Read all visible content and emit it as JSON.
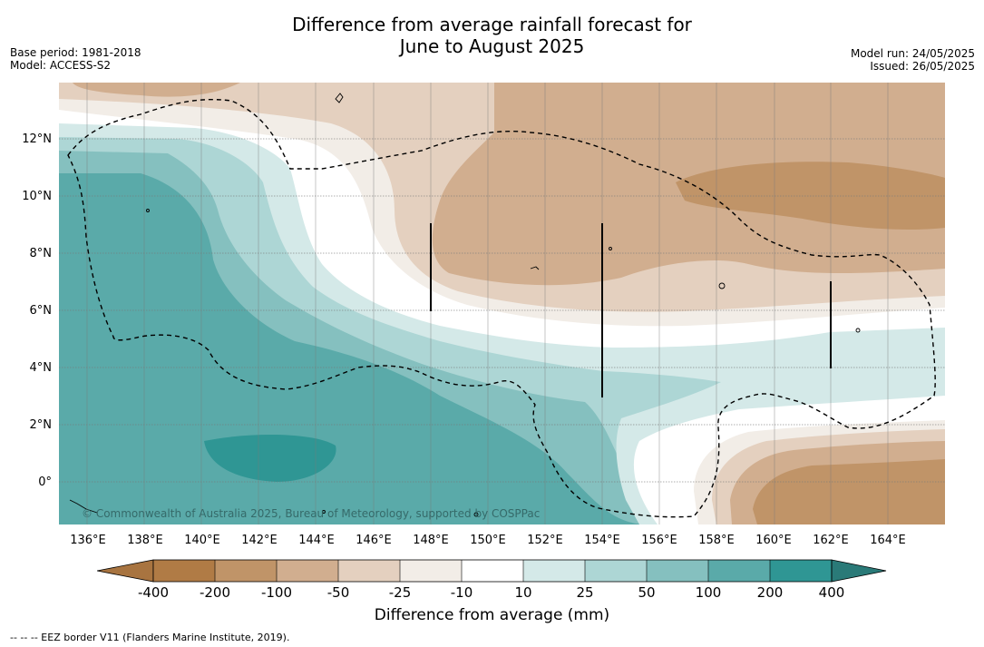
{
  "title": {
    "line1": "Difference from average rainfall forecast for",
    "line2": "June to August 2025"
  },
  "header_left": {
    "base_period": "Base period: 1981-2018",
    "model": "Model: ACCESS-S2"
  },
  "header_right": {
    "model_run": "Model run: 24/05/2025",
    "issued": "Issued: 26/05/2025"
  },
  "map": {
    "x_ticks": [
      "136°E",
      "138°E",
      "140°E",
      "142°E",
      "144°E",
      "146°E",
      "148°E",
      "150°E",
      "152°E",
      "154°E",
      "156°E",
      "158°E",
      "160°E",
      "162°E",
      "164°E"
    ],
    "y_ticks": [
      "12°N",
      "10°N",
      "8°N",
      "6°N",
      "4°N",
      "2°N",
      "0°"
    ],
    "copyright": "© Commonwealth of Australia 2025, Bureau of Meteorology, supported by COSPPac"
  },
  "colorbar": {
    "title": "Difference from average (mm)",
    "tick_labels": [
      "-400",
      "-200",
      "-100",
      "-50",
      "-25",
      "-10",
      "10",
      "25",
      "50",
      "100",
      "200",
      "400"
    ],
    "colors": [
      "#a87440",
      "#b07b45",
      "#c09468",
      "#d1ae8f",
      "#e4d0bf",
      "#f2ede7",
      "#ffffff",
      "#d4e9e8",
      "#add6d5",
      "#85c0bf",
      "#5aaaa9",
      "#2f9694",
      "#2a7a78"
    ]
  },
  "footnote": "--  --  -- EEZ border V11 (Flanders Marine Institute, 2019)."
}
